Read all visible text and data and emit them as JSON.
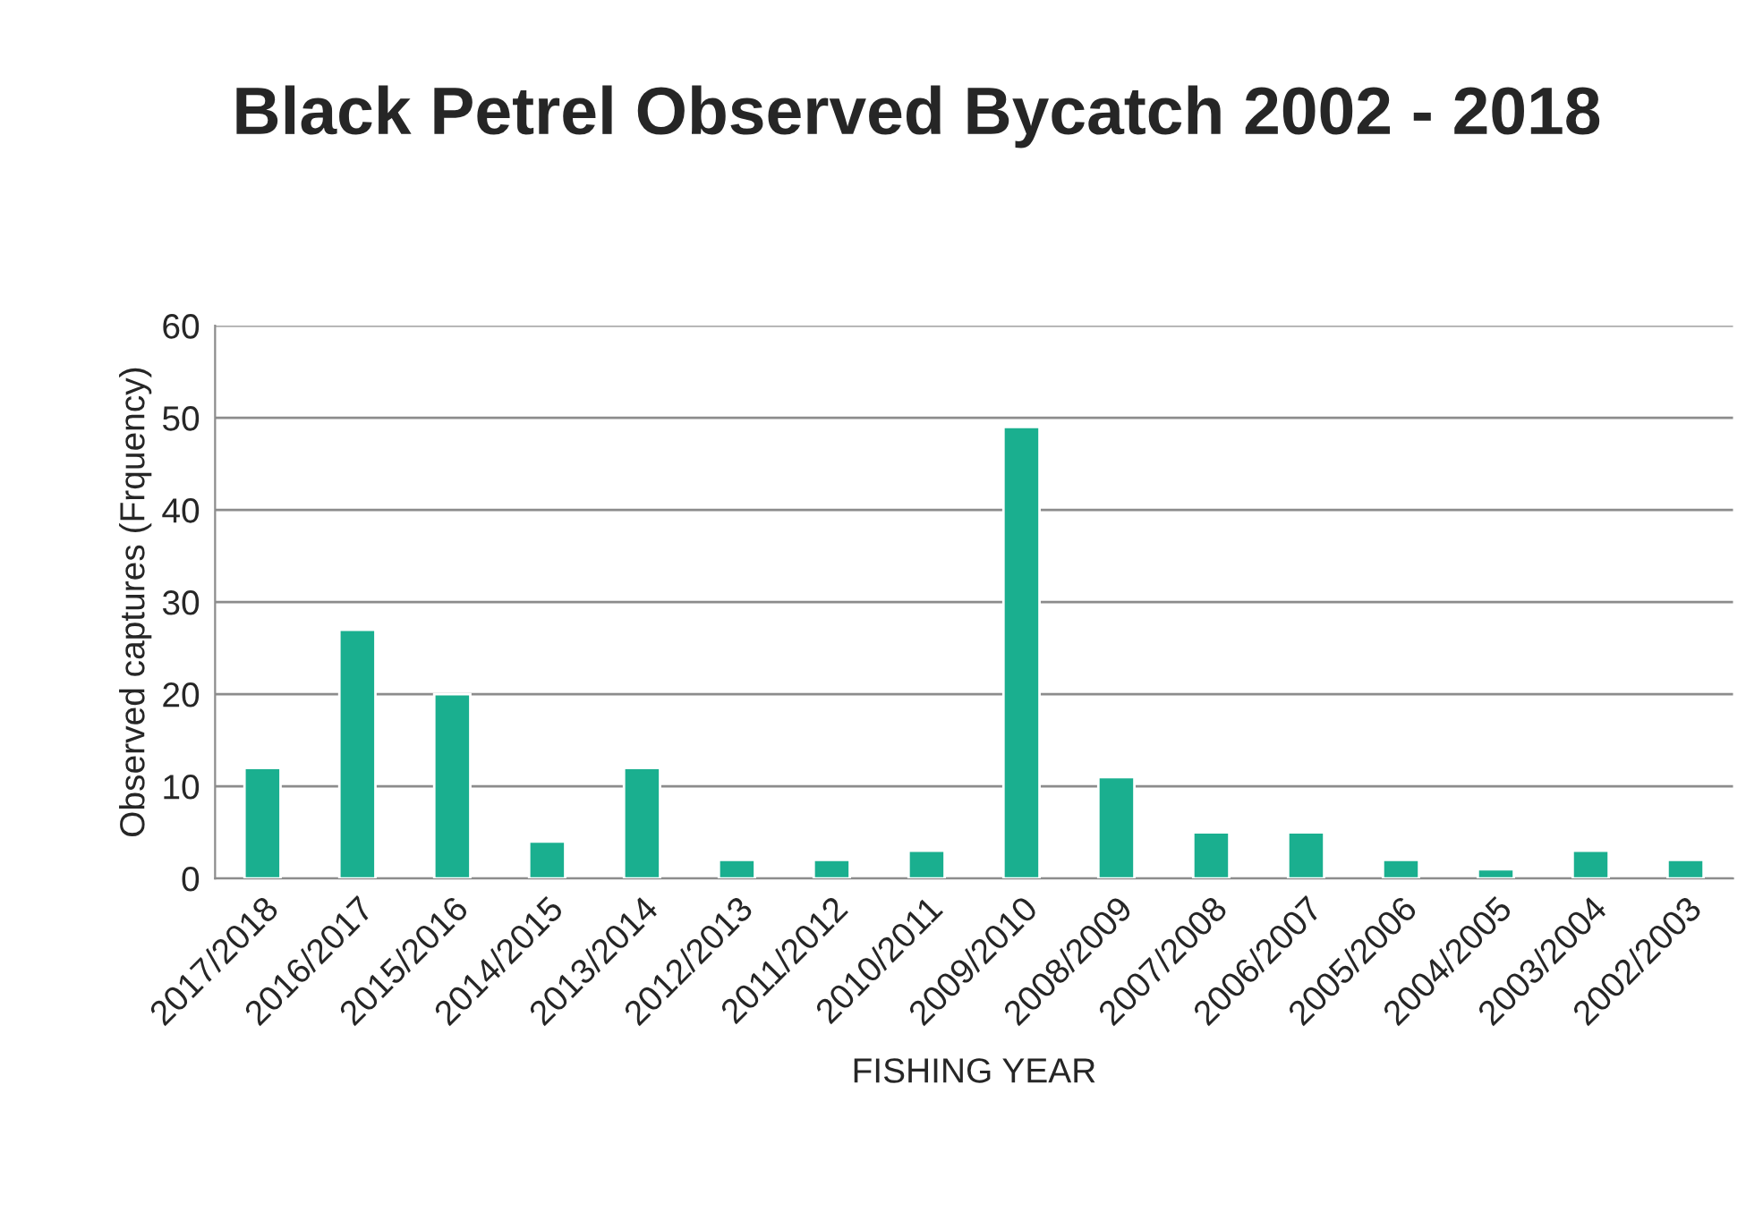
{
  "chart_data": {
    "type": "bar",
    "title": "Black Petrel Observed Bycatch 2002 - 2018",
    "xlabel": "FISHING YEAR",
    "ylabel": "Observed captures (Frquency)",
    "categories": [
      "2017/2018",
      "2016/2017",
      "2015/2016",
      "2014/2015",
      "2013/2014",
      "2012/2013",
      "2011/2012",
      "2010/2011",
      "2009/2010",
      "2008/2009",
      "2007/2008",
      "2006/2007",
      "2005/2006",
      "2004/2005",
      "2003/2004",
      "2002/2003"
    ],
    "values": [
      12,
      27,
      20,
      4,
      12,
      2,
      2,
      3,
      49,
      11,
      5,
      5,
      2,
      1,
      3,
      2
    ],
    "color": "#1aaf8f",
    "ylim": [
      0,
      60
    ],
    "yticks": [
      0,
      10,
      20,
      30,
      40,
      50,
      60
    ],
    "grid": "y",
    "legend": false
  }
}
